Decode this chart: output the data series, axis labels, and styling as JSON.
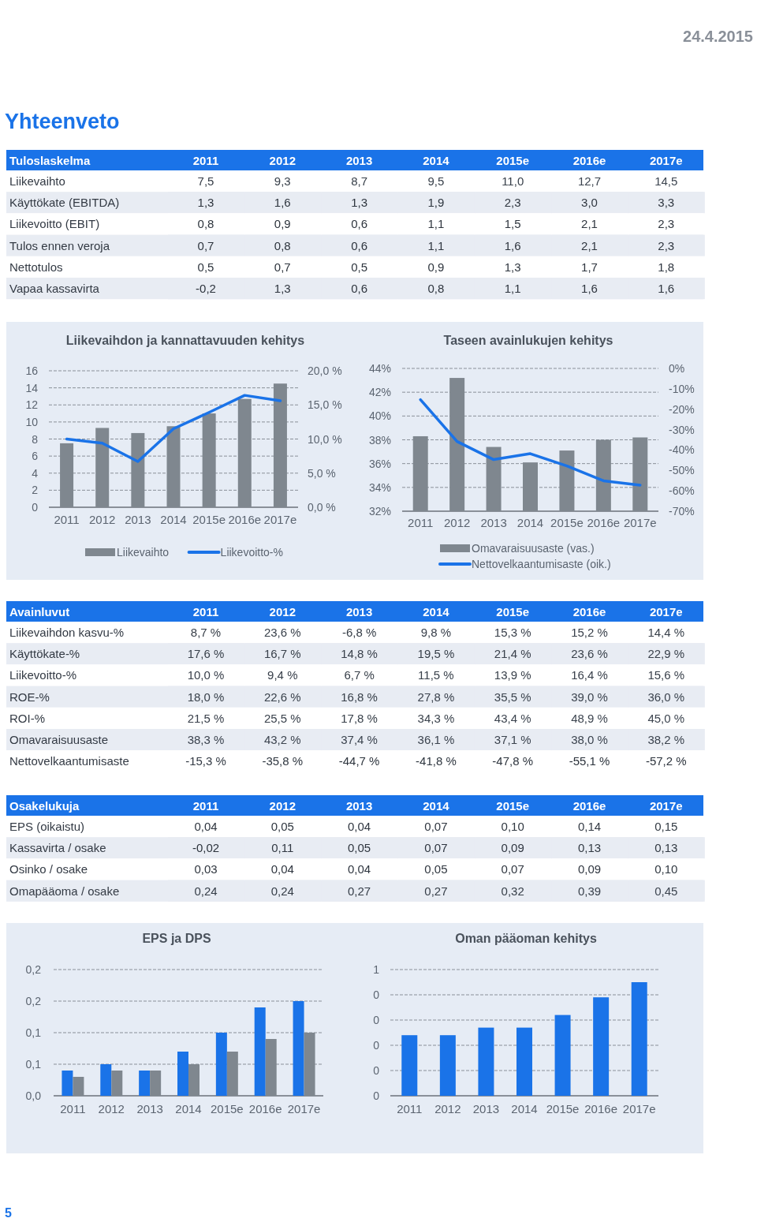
{
  "chart_data": [
    {
      "type": "other",
      "title": "Yhteenveto",
      "annotations": [
        "24.4.2015",
        "5"
      ]
    },
    {
      "type": "heatmap",
      "title": "Tuloslaskelma",
      "cells": [
        [
          7.5,
          9.3,
          8.7,
          9.5,
          11.0,
          12.7,
          14.5
        ],
        [
          1.3,
          1.6,
          1.3,
          1.9,
          2.3,
          3.0,
          3.3
        ],
        [
          0.8,
          0.9,
          0.6,
          1.1,
          1.5,
          2.1,
          2.3
        ],
        [
          0.7,
          0.8,
          0.6,
          1.1,
          1.6,
          2.1,
          2.3
        ],
        [
          0.5,
          0.7,
          0.5,
          0.9,
          1.3,
          1.7,
          1.8
        ],
        [
          -0.2,
          1.3,
          0.6,
          0.8,
          1.1,
          1.6,
          1.6
        ]
      ],
      "categories": [
        "2011",
        "2012",
        "2013",
        "2014",
        "2015e",
        "2016e",
        "2017e"
      ],
      "y_categories": [
        "Liikevaihto",
        "Käyttökate (EBITDA)",
        "Liikevoitto (EBIT)",
        "Tulos ennen veroja",
        "Nettotulos",
        "Vapaa kassavirta"
      ],
      "cell_labels": [
        [
          "7,5",
          "9,3",
          "8,7",
          "9,5",
          "11,0",
          "12,7",
          "14,5"
        ],
        [
          "1,3",
          "1,6",
          "1,3",
          "1,9",
          "2,3",
          "3,0",
          "3,3"
        ],
        [
          "0,8",
          "0,9",
          "0,6",
          "1,1",
          "1,5",
          "2,1",
          "2,3"
        ],
        [
          "0,7",
          "0,8",
          "0,6",
          "1,1",
          "1,6",
          "2,1",
          "2,3"
        ],
        [
          "0,5",
          "0,7",
          "0,5",
          "0,9",
          "1,3",
          "1,7",
          "1,8"
        ],
        [
          "-0,2",
          "1,3",
          "0,6",
          "0,8",
          "1,1",
          "1,6",
          "1,6"
        ]
      ]
    },
    {
      "type": "bar",
      "title": "Liikevaihdon ja kannattavuuden kehitys",
      "categories": [
        "2011",
        "2012",
        "2013",
        "2014",
        "2015e",
        "2016e",
        "2017e"
      ],
      "series": [
        {
          "name": "Liikevaihto",
          "color": "#7f878f",
          "values": [
            7.5,
            9.3,
            8.7,
            9.5,
            11.0,
            12.7,
            14.5
          ]
        },
        {
          "name": "Liikevoitto-%",
          "type": "line",
          "axis": "y2",
          "color": "#1a73e8",
          "values": [
            10.0,
            9.4,
            6.7,
            11.5,
            13.9,
            16.4,
            15.6
          ]
        }
      ],
      "ylim": [
        0,
        16
      ],
      "yticks": [
        0,
        2,
        4,
        6,
        8,
        10,
        12,
        14,
        16
      ],
      "y2lim": [
        0,
        20
      ],
      "y2ticks": [
        {
          "value": 0,
          "label": "0,0 %"
        },
        {
          "value": 5,
          "label": "5,0 %"
        },
        {
          "value": 10,
          "label": "10,0 %"
        },
        {
          "value": 15,
          "label": "15,0 %"
        },
        {
          "value": 20,
          "label": "20,0 %"
        }
      ],
      "grid": "y",
      "legend": "bottom"
    },
    {
      "type": "bar",
      "title": "Taseen avainlukujen kehitys",
      "categories": [
        "2011",
        "2012",
        "2013",
        "2014",
        "2015e",
        "2016e",
        "2017e"
      ],
      "series": [
        {
          "name": "Omavaraisuusaste (vas.)",
          "color": "#7f878f",
          "values": [
            38.3,
            43.2,
            37.4,
            36.1,
            37.1,
            38.0,
            38.2
          ]
        },
        {
          "name": "Nettovelkaantumisaste (oik.)",
          "type": "line",
          "axis": "y2",
          "color": "#1a73e8",
          "values": [
            -15.3,
            -35.8,
            -44.7,
            -41.8,
            -47.8,
            -55.1,
            -57.2
          ]
        }
      ],
      "ylim": [
        32,
        44
      ],
      "yticks": [
        {
          "value": 32,
          "label": "32%"
        },
        {
          "value": 34,
          "label": "34%"
        },
        {
          "value": 36,
          "label": "36%"
        },
        {
          "value": 38,
          "label": "38%"
        },
        {
          "value": 40,
          "label": "40%"
        },
        {
          "value": 42,
          "label": "42%"
        },
        {
          "value": 44,
          "label": "44%"
        }
      ],
      "y2lim": [
        -70,
        0
      ],
      "y2ticks": [
        {
          "value": -70,
          "label": "-70%"
        },
        {
          "value": -60,
          "label": "-60%"
        },
        {
          "value": -50,
          "label": "-50%"
        },
        {
          "value": -40,
          "label": "-40%"
        },
        {
          "value": -30,
          "label": "-30%"
        },
        {
          "value": -20,
          "label": "-20%"
        },
        {
          "value": -10,
          "label": "-10%"
        },
        {
          "value": 0,
          "label": "0%"
        }
      ],
      "grid": "y",
      "legend": "bottom"
    },
    {
      "type": "heatmap",
      "title": "Avainluvut",
      "cells": [
        [
          8.7,
          23.6,
          -6.8,
          9.8,
          15.3,
          15.2,
          14.4
        ],
        [
          17.6,
          16.7,
          14.8,
          19.5,
          21.4,
          23.6,
          22.9
        ],
        [
          10.0,
          9.4,
          6.7,
          11.5,
          13.9,
          16.4,
          15.6
        ],
        [
          18.0,
          22.6,
          16.8,
          27.8,
          35.5,
          39.0,
          36.0
        ],
        [
          21.5,
          25.5,
          17.8,
          34.3,
          43.4,
          48.9,
          45.0
        ],
        [
          38.3,
          43.2,
          37.4,
          36.1,
          37.1,
          38.0,
          38.2
        ],
        [
          -15.3,
          -35.8,
          -44.7,
          -41.8,
          -47.8,
          -55.1,
          -57.2
        ]
      ],
      "categories": [
        "2011",
        "2012",
        "2013",
        "2014",
        "2015e",
        "2016e",
        "2017e"
      ],
      "y_categories": [
        "Liikevaihdon kasvu-%",
        "Käyttökate-%",
        "Liikevoitto-%",
        "ROE-%",
        "ROI-%",
        "Omavaraisuusaste",
        "Nettovelkaantumisaste"
      ],
      "cell_labels": [
        [
          "8,7 %",
          "23,6 %",
          "-6,8 %",
          "9,8 %",
          "15,3 %",
          "15,2 %",
          "14,4 %"
        ],
        [
          "17,6 %",
          "16,7 %",
          "14,8 %",
          "19,5 %",
          "21,4 %",
          "23,6 %",
          "22,9 %"
        ],
        [
          "10,0 %",
          "9,4 %",
          "6,7 %",
          "11,5 %",
          "13,9 %",
          "16,4 %",
          "15,6 %"
        ],
        [
          "18,0 %",
          "22,6 %",
          "16,8 %",
          "27,8 %",
          "35,5 %",
          "39,0 %",
          "36,0 %"
        ],
        [
          "21,5 %",
          "25,5 %",
          "17,8 %",
          "34,3 %",
          "43,4 %",
          "48,9 %",
          "45,0 %"
        ],
        [
          "38,3 %",
          "43,2 %",
          "37,4 %",
          "36,1 %",
          "37,1 %",
          "38,0 %",
          "38,2 %"
        ],
        [
          "-15,3 %",
          "-35,8 %",
          "-44,7 %",
          "-41,8 %",
          "-47,8 %",
          "-55,1 %",
          "-57,2 %"
        ]
      ]
    },
    {
      "type": "heatmap",
      "title": "Osakelukuja",
      "cells": [
        [
          0.04,
          0.05,
          0.04,
          0.07,
          0.1,
          0.14,
          0.15
        ],
        [
          -0.02,
          0.11,
          0.05,
          0.07,
          0.09,
          0.13,
          0.13
        ],
        [
          0.03,
          0.04,
          0.04,
          0.05,
          0.07,
          0.09,
          0.1
        ],
        [
          0.24,
          0.24,
          0.27,
          0.27,
          0.32,
          0.39,
          0.45
        ]
      ],
      "categories": [
        "2011",
        "2012",
        "2013",
        "2014",
        "2015e",
        "2016e",
        "2017e"
      ],
      "y_categories": [
        "EPS (oikaistu)",
        "Kassavirta / osake",
        "Osinko / osake",
        "Omapääoma / osake"
      ],
      "cell_labels": [
        [
          "0,04",
          "0,05",
          "0,04",
          "0,07",
          "0,10",
          "0,14",
          "0,15"
        ],
        [
          "-0,02",
          "0,11",
          "0,05",
          "0,07",
          "0,09",
          "0,13",
          "0,13"
        ],
        [
          "0,03",
          "0,04",
          "0,04",
          "0,05",
          "0,07",
          "0,09",
          "0,10"
        ],
        [
          "0,24",
          "0,24",
          "0,27",
          "0,27",
          "0,32",
          "0,39",
          "0,45"
        ]
      ]
    },
    {
      "type": "bar",
      "title": "EPS ja DPS",
      "categories": [
        "2011",
        "2012",
        "2013",
        "2014",
        "2015e",
        "2016e",
        "2017e"
      ],
      "series": [
        {
          "color": "#1a73e8",
          "values": [
            0.04,
            0.05,
            0.04,
            0.07,
            0.1,
            0.14,
            0.15
          ]
        },
        {
          "color": "#7f878f",
          "values": [
            0.03,
            0.04,
            0.04,
            0.05,
            0.07,
            0.09,
            0.1
          ]
        }
      ],
      "ylim": [
        0,
        0.2
      ],
      "yticks": [
        {
          "value": 0,
          "label": "0,0"
        },
        {
          "value": 0.05,
          "label": "0,1"
        },
        {
          "value": 0.1,
          "label": "0,1"
        },
        {
          "value": 0.15,
          "label": "0,2"
        },
        {
          "value": 0.2,
          "label": "0,2"
        }
      ],
      "grid": "y"
    },
    {
      "type": "bar",
      "title": "Oman pääoman kehitys",
      "categories": [
        "2011",
        "2012",
        "2013",
        "2014",
        "2015e",
        "2016e",
        "2017e"
      ],
      "series": [
        {
          "color": "#1a73e8",
          "values": [
            0.24,
            0.24,
            0.27,
            0.27,
            0.32,
            0.39,
            0.45
          ]
        }
      ],
      "ylim": [
        0,
        0.5
      ],
      "yticks": [
        {
          "value": 0,
          "label": "0"
        },
        {
          "value": 0.1,
          "label": "0"
        },
        {
          "value": 0.2,
          "label": "0"
        },
        {
          "value": 0.3,
          "label": "0"
        },
        {
          "value": 0.4,
          "label": "0"
        },
        {
          "value": 0.5,
          "label": "1"
        }
      ],
      "grid": "y"
    }
  ]
}
